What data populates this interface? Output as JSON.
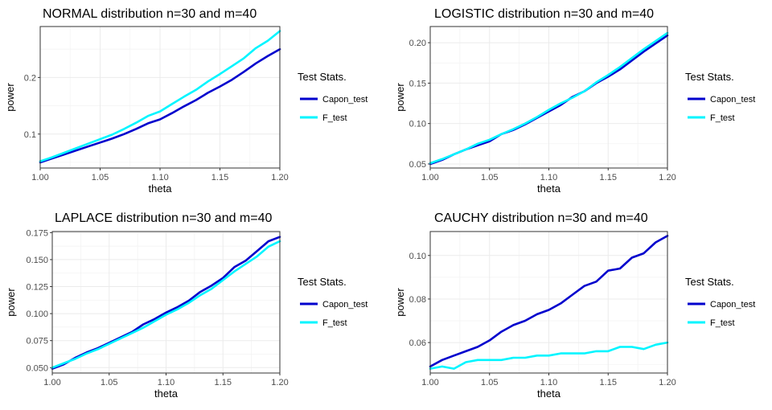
{
  "legend": {
    "title": "Test Stats.",
    "items": [
      {
        "label": "Capon_test",
        "color": "#0000CD"
      },
      {
        "label": "F_test",
        "color": "#00F5FF"
      }
    ]
  },
  "chart_data": [
    {
      "type": "line",
      "title": "NORMAL distribution      n=30 and m=40",
      "xlabel": "theta",
      "ylabel": "power",
      "xlim": [
        1.0,
        1.2
      ],
      "ylim": [
        0.04,
        0.29
      ],
      "xticks": [
        "1.00",
        "1.05",
        "1.10",
        "1.15",
        "1.20"
      ],
      "yticks": [
        "0.1",
        "0.2"
      ],
      "x": [
        1.0,
        1.01,
        1.02,
        1.03,
        1.04,
        1.05,
        1.06,
        1.07,
        1.08,
        1.09,
        1.1,
        1.11,
        1.12,
        1.13,
        1.14,
        1.15,
        1.16,
        1.17,
        1.18,
        1.19,
        1.2
      ],
      "series": [
        {
          "name": "Capon_test",
          "values": [
            0.05,
            0.057,
            0.064,
            0.071,
            0.078,
            0.085,
            0.092,
            0.1,
            0.109,
            0.119,
            0.126,
            0.137,
            0.149,
            0.16,
            0.173,
            0.184,
            0.196,
            0.21,
            0.225,
            0.238,
            0.25
          ]
        },
        {
          "name": "F_test",
          "values": [
            0.052,
            0.059,
            0.067,
            0.075,
            0.083,
            0.091,
            0.099,
            0.109,
            0.12,
            0.132,
            0.14,
            0.153,
            0.166,
            0.178,
            0.193,
            0.206,
            0.22,
            0.234,
            0.252,
            0.265,
            0.282
          ]
        }
      ]
    },
    {
      "type": "line",
      "title": "LOGISTIC distribution      n=30 and m=40",
      "xlabel": "theta",
      "ylabel": "power",
      "xlim": [
        1.0,
        1.2
      ],
      "ylim": [
        0.045,
        0.22
      ],
      "xticks": [
        "1.00",
        "1.05",
        "1.10",
        "1.15",
        "1.20"
      ],
      "yticks": [
        "0.05",
        "0.10",
        "0.15",
        "0.20"
      ],
      "x": [
        1.0,
        1.01,
        1.02,
        1.03,
        1.04,
        1.05,
        1.06,
        1.07,
        1.08,
        1.09,
        1.1,
        1.11,
        1.12,
        1.13,
        1.14,
        1.15,
        1.16,
        1.17,
        1.18,
        1.19,
        1.2
      ],
      "series": [
        {
          "name": "Capon_test",
          "values": [
            0.05,
            0.055,
            0.062,
            0.068,
            0.073,
            0.078,
            0.087,
            0.092,
            0.099,
            0.107,
            0.115,
            0.123,
            0.133,
            0.14,
            0.15,
            0.158,
            0.167,
            0.178,
            0.189,
            0.199,
            0.209
          ]
        },
        {
          "name": "F_test",
          "values": [
            0.051,
            0.056,
            0.062,
            0.068,
            0.075,
            0.08,
            0.087,
            0.093,
            0.1,
            0.108,
            0.117,
            0.125,
            0.132,
            0.14,
            0.151,
            0.16,
            0.17,
            0.181,
            0.192,
            0.202,
            0.212
          ]
        }
      ]
    },
    {
      "type": "line",
      "title": "LAPLACE distribution      n=30 and m=40",
      "xlabel": "theta",
      "ylabel": "power",
      "xlim": [
        1.0,
        1.2
      ],
      "ylim": [
        0.045,
        0.176
      ],
      "xticks": [
        "1.00",
        "1.05",
        "1.10",
        "1.15",
        "1.20"
      ],
      "yticks": [
        "0.050",
        "0.075",
        "0.100",
        "0.125",
        "0.150",
        "0.175"
      ],
      "x": [
        1.0,
        1.01,
        1.02,
        1.03,
        1.04,
        1.05,
        1.06,
        1.07,
        1.08,
        1.09,
        1.1,
        1.11,
        1.12,
        1.13,
        1.14,
        1.15,
        1.16,
        1.17,
        1.18,
        1.19,
        1.2
      ],
      "series": [
        {
          "name": "Capon_test",
          "values": [
            0.049,
            0.053,
            0.059,
            0.064,
            0.068,
            0.073,
            0.078,
            0.083,
            0.09,
            0.095,
            0.101,
            0.106,
            0.112,
            0.12,
            0.126,
            0.133,
            0.143,
            0.149,
            0.158,
            0.167,
            0.171
          ]
        },
        {
          "name": "F_test",
          "values": [
            0.05,
            0.054,
            0.058,
            0.063,
            0.067,
            0.072,
            0.077,
            0.082,
            0.087,
            0.093,
            0.099,
            0.104,
            0.11,
            0.117,
            0.123,
            0.131,
            0.139,
            0.146,
            0.153,
            0.162,
            0.167
          ]
        }
      ]
    },
    {
      "type": "line",
      "title": "CAUCHY distribution      n=30 and m=40",
      "xlabel": "theta",
      "ylabel": "power",
      "xlim": [
        1.0,
        1.2
      ],
      "ylim": [
        0.046,
        0.111
      ],
      "xticks": [
        "1.00",
        "1.05",
        "1.10",
        "1.15",
        "1.20"
      ],
      "yticks": [
        "0.06",
        "0.08",
        "0.10"
      ],
      "x": [
        1.0,
        1.01,
        1.02,
        1.03,
        1.04,
        1.05,
        1.06,
        1.07,
        1.08,
        1.09,
        1.1,
        1.11,
        1.12,
        1.13,
        1.14,
        1.15,
        1.16,
        1.17,
        1.18,
        1.19,
        1.2
      ],
      "series": [
        {
          "name": "Capon_test",
          "values": [
            0.049,
            0.052,
            0.054,
            0.056,
            0.058,
            0.061,
            0.065,
            0.068,
            0.07,
            0.073,
            0.075,
            0.078,
            0.082,
            0.086,
            0.088,
            0.093,
            0.094,
            0.099,
            0.101,
            0.106,
            0.109
          ]
        },
        {
          "name": "F_test",
          "values": [
            0.048,
            0.049,
            0.048,
            0.051,
            0.052,
            0.052,
            0.052,
            0.053,
            0.053,
            0.054,
            0.054,
            0.055,
            0.055,
            0.055,
            0.056,
            0.056,
            0.058,
            0.058,
            0.057,
            0.059,
            0.06
          ]
        }
      ]
    }
  ]
}
